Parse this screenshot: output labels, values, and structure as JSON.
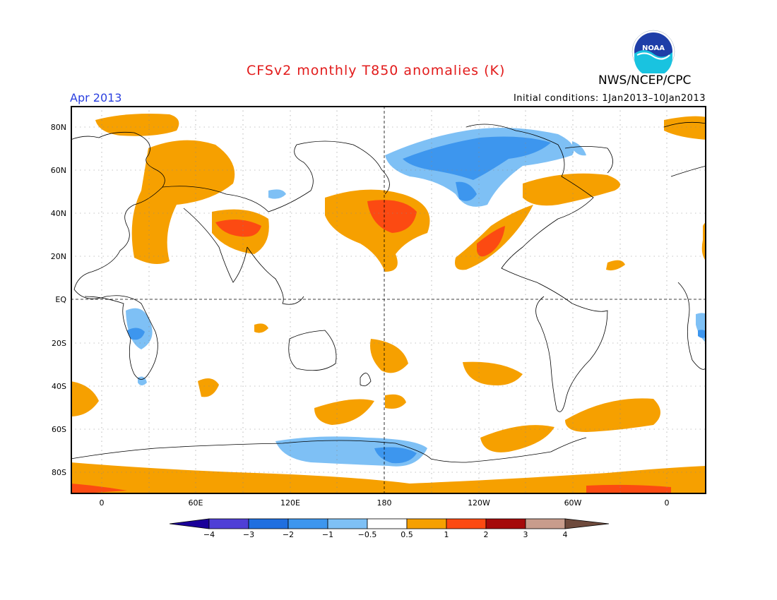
{
  "title": "CFSv2 monthly T850 anomalies (K)",
  "organization": "NWS/NCEP/CPC",
  "logo": {
    "name": "noaa-logo",
    "text": "NOAA"
  },
  "month_label": "Apr 2013",
  "initial_conditions": "Initial conditions: 1Jan2013–10Jan2013",
  "lat_ticks": [
    "80N",
    "60N",
    "40N",
    "20N",
    "EQ",
    "20S",
    "40S",
    "60S",
    "80S"
  ],
  "lon_ticks": [
    "0",
    "60E",
    "120E",
    "180",
    "120W",
    "60W",
    "0"
  ],
  "colorbar": {
    "colors": [
      "#1a0099",
      "#4f3fd6",
      "#1f6fe0",
      "#3d96ee",
      "#7ec0f5",
      "#ffffff",
      "#f6a000",
      "#fc4a12",
      "#a50a0a",
      "#c89c8c",
      "#6e4a3c"
    ],
    "labels": [
      "−4",
      "−3",
      "−2",
      "−1",
      "−0.5",
      "0.5",
      "1",
      "2",
      "3",
      "4"
    ]
  },
  "colors": {
    "title": "#e21b1b",
    "month": "#2a3fe0",
    "warm1": "#f6a000",
    "warm2": "#fc4a12",
    "cool1": "#7ec0f5",
    "cool2": "#3d96ee"
  }
}
